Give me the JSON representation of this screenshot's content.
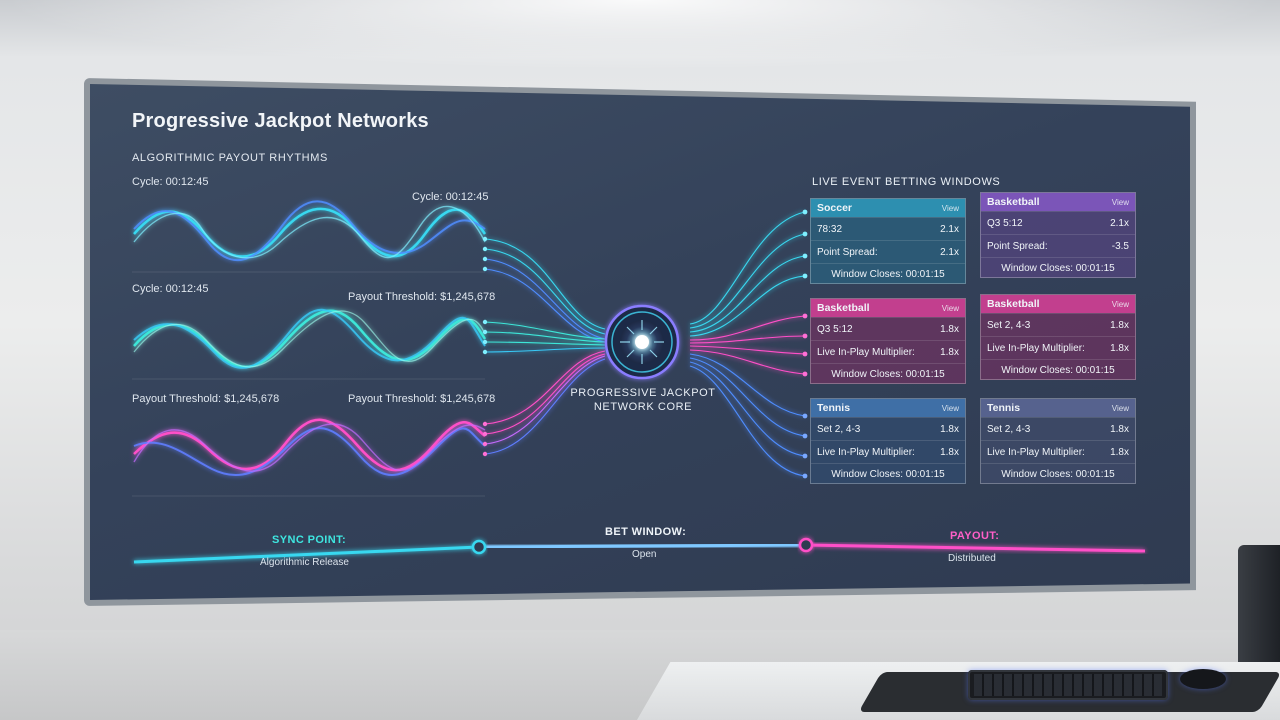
{
  "header": {
    "title": "Progressive Jackpot Networks",
    "subtitle": "ALGORITHMIC PAYOUT RHYTHMS"
  },
  "wave_labels": {
    "w1_left": "Cycle: 00:12:45",
    "w1_right": "Cycle: 00:12:45",
    "w2_left": "Cycle: 00:12:45",
    "w2_right": "Payout Threshold: $1,245,678",
    "w3_left": "Payout Threshold: $1,245,678",
    "w3_right": "Payout Threshold: $1,245,678"
  },
  "core": {
    "line1": "PROGRESSIVE JACKPOT",
    "line2": "NETWORK CORE"
  },
  "live_events": {
    "title": "LIVE EVENT BETTING WINDOWS",
    "cards": [
      {
        "sport": "Soccer",
        "view": "View",
        "row1_label": "78:32",
        "row1_value": "2.1x",
        "row2_label": "Point Spread:",
        "row2_value": "2.1x",
        "footer": "Window Closes: 00:01:15",
        "color": "#2d8fb0"
      },
      {
        "sport": "Basketball",
        "view": "View",
        "row1_label": "Q3 5:12",
        "row1_value": "2.1x",
        "row2_label": "Point Spread:",
        "row2_value": "-3.5",
        "footer": "Window Closes: 00:01:15",
        "color": "#7b55b8"
      },
      {
        "sport": "Basketball",
        "view": "View",
        "row1_label": "Q3 5:12",
        "row1_value": "1.8x",
        "row2_label": "Live In-Play Multiplier:",
        "row2_value": "1.8x",
        "footer": "Window Closes: 00:01:15",
        "color": "#c23f8e"
      },
      {
        "sport": "Basketball",
        "view": "View",
        "row1_label": "Set 2, 4-3",
        "row1_value": "1.8x",
        "row2_label": "Live In-Play Multiplier:",
        "row2_value": "1.8x",
        "footer": "Window Closes: 00:01:15",
        "color": "#c23f8e"
      },
      {
        "sport": "Tennis",
        "view": "View",
        "row1_label": "Set 2, 4-3",
        "row1_value": "1.8x",
        "row2_label": "Live In-Play Multiplier:",
        "row2_value": "1.8x",
        "footer": "Window Closes: 00:01:15",
        "color": "#3f6fa6"
      },
      {
        "sport": "Tennis",
        "view": "View",
        "row1_label": "Set 2, 4-3",
        "row1_value": "1.8x",
        "row2_label": "Live In-Play Multiplier:",
        "row2_value": "1.8x",
        "footer": "Window Closes: 00:01:15",
        "color": "#56628e"
      }
    ]
  },
  "timeline": {
    "sync_label": "SYNC POINT:",
    "sync_sub": "Algorithmic Release",
    "bet_label": "BET WINDOW:",
    "bet_sub": "Open",
    "payout_label": "PAYOUT:",
    "payout_sub": "Distributed"
  },
  "colors": {
    "cyan": "#37d8f0",
    "teal": "#3ee6d8",
    "magenta": "#ff4fc8",
    "blue": "#4f7dff",
    "purple": "#9a5cff"
  }
}
